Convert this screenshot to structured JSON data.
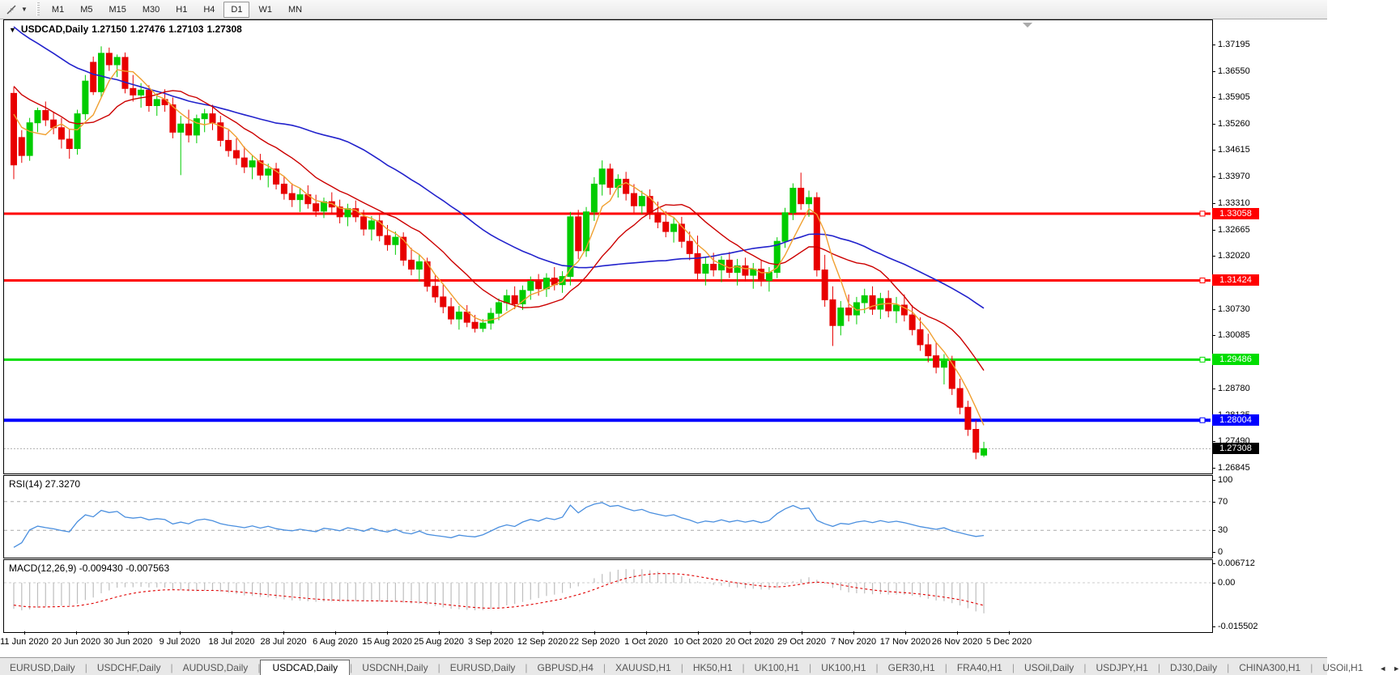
{
  "toolbar": {
    "chart_tool_icon": "cursor-tool-icon",
    "dropdown_icon": "chevron-down-icon",
    "timeframes": [
      {
        "label": "M1",
        "active": false
      },
      {
        "label": "M5",
        "active": false
      },
      {
        "label": "M15",
        "active": false
      },
      {
        "label": "M30",
        "active": false
      },
      {
        "label": "H1",
        "active": false
      },
      {
        "label": "H4",
        "active": false
      },
      {
        "label": "D1",
        "active": true
      },
      {
        "label": "W1",
        "active": false
      },
      {
        "label": "MN",
        "active": false
      }
    ]
  },
  "chart": {
    "title": {
      "dropdown_icon": "triangle-down-icon",
      "symbol": "USDCAD,Daily",
      "open": "1.27150",
      "high": "1.27476",
      "low": "1.27103",
      "close": "1.27308"
    },
    "price_axis_ticks": [
      {
        "label": "1.37195",
        "value": 1.37195
      },
      {
        "label": "1.36550",
        "value": 1.3655
      },
      {
        "label": "1.35905",
        "value": 1.35905
      },
      {
        "label": "1.35260",
        "value": 1.3526
      },
      {
        "label": "1.34615",
        "value": 1.34615
      },
      {
        "label": "1.33970",
        "value": 1.3397
      },
      {
        "label": "1.33310",
        "value": 1.3331
      },
      {
        "label": "1.32665",
        "value": 1.32665
      },
      {
        "label": "1.32020",
        "value": 1.3202
      },
      {
        "label": "1.30730",
        "value": 1.3073
      },
      {
        "label": "1.30085",
        "value": 1.30085
      },
      {
        "label": "1.28780",
        "value": 1.2878
      },
      {
        "label": "1.28135",
        "value": 1.28135
      },
      {
        "label": "1.27490",
        "value": 1.2749
      },
      {
        "label": "1.26845",
        "value": 1.26845
      }
    ],
    "levels": [
      {
        "label": "1.33058",
        "value": 1.33058,
        "color": "#FF0000",
        "width": 3
      },
      {
        "label": "1.31424",
        "value": 1.31424,
        "color": "#FF0000",
        "width": 3
      },
      {
        "label": "1.29486",
        "value": 1.29486,
        "color": "#00DD00",
        "width": 3
      },
      {
        "label": "1.28004",
        "value": 1.28004,
        "color": "#0000FF",
        "width": 4
      }
    ],
    "current_price": {
      "label": "1.27308",
      "value": 1.27308,
      "color": "#000000"
    },
    "shift_marker_icon": "triangle-down-icon",
    "colors": {
      "up_candle": "#00CC00",
      "down_candle": "#E80000",
      "ma_fast": "#F0A030",
      "ma_mid": "#CC0000",
      "ma_slow": "#2222CC",
      "rsi_line": "#4A8FDF",
      "macd_bars": "#BEBEBE",
      "macd_signal": "#E00000"
    }
  },
  "rsi_panel": {
    "label": "RSI(14) 27.3270",
    "ticks": [
      {
        "label": "100",
        "value": 100
      },
      {
        "label": "70",
        "value": 70
      },
      {
        "label": "30",
        "value": 30
      },
      {
        "label": "0",
        "value": 0
      }
    ],
    "levels": [
      70,
      30
    ]
  },
  "macd_panel": {
    "label": "MACD(12,26,9) -0.009430 -0.007563",
    "ticks": [
      {
        "label": "0.006712",
        "value": 0.006712
      },
      {
        "label": "0.00",
        "value": 0
      },
      {
        "label": "-0.015502",
        "value": -0.015502
      }
    ]
  },
  "tabs": {
    "items": [
      {
        "label": "EURUSD,Daily",
        "active": false
      },
      {
        "label": "USDCHF,Daily",
        "active": false
      },
      {
        "label": "AUDUSD,Daily",
        "active": false
      },
      {
        "label": "USDCAD,Daily",
        "active": true
      },
      {
        "label": "USDCNH,Daily",
        "active": false
      },
      {
        "label": "EURUSD,Daily",
        "active": false
      },
      {
        "label": "GBPUSD,H4",
        "active": false
      },
      {
        "label": "XAUUSD,H1",
        "active": false
      },
      {
        "label": "HK50,H1",
        "active": false
      },
      {
        "label": "UK100,H1",
        "active": false
      },
      {
        "label": "UK100,H1",
        "active": false
      },
      {
        "label": "GER30,H1",
        "active": false
      },
      {
        "label": "FRA40,H1",
        "active": false
      },
      {
        "label": "USOil,Daily",
        "active": false
      },
      {
        "label": "USDJPY,H1",
        "active": false
      },
      {
        "label": "DJ30,Daily",
        "active": false
      },
      {
        "label": "CHINA300,H1",
        "active": false
      },
      {
        "label": "USOil,H1",
        "active": false
      }
    ],
    "nav_left_icon": "◄",
    "nav_right_icon": "►"
  },
  "chart_data": {
    "type": "candlestick",
    "symbol": "USDCAD",
    "timeframe": "Daily",
    "title": "USDCAD,Daily 1.27150 1.27476 1.27103 1.27308",
    "ylim": [
      1.267,
      1.3779
    ],
    "x_axis_dates": [
      "11 Jun 2020",
      "20 Jun 2020",
      "30 Jun 2020",
      "9 Jul 2020",
      "18 Jul 2020",
      "28 Jul 2020",
      "6 Aug 2020",
      "15 Aug 2020",
      "25 Aug 2020",
      "3 Sep 2020",
      "12 Sep 2020",
      "22 Sep 2020",
      "1 Oct 2020",
      "10 Oct 2020",
      "20 Oct 2020",
      "29 Oct 2020",
      "7 Nov 2020",
      "17 Nov 2020",
      "26 Nov 2020",
      "5 Dec 2020"
    ],
    "horizontal_levels": [
      1.33058,
      1.31424,
      1.29486,
      1.28004
    ],
    "last_price": 1.27308,
    "moving_averages": [
      {
        "period": 5,
        "color": "#F0A030"
      },
      {
        "period": 13,
        "color": "#CC0000"
      },
      {
        "period": 34,
        "color": "#2222CC"
      }
    ],
    "indicators": [
      {
        "name": "RSI",
        "period": 14,
        "current": 27.327,
        "range": [
          0,
          100
        ],
        "levels": [
          70,
          30
        ]
      },
      {
        "name": "MACD",
        "params": [
          12,
          26,
          9
        ],
        "current_macd": -0.00943,
        "current_signal": -0.007563,
        "range": [
          -0.015502,
          0.006712
        ]
      }
    ],
    "ohlc": [
      [
        1.36,
        1.3615,
        1.339,
        1.3425
      ],
      [
        1.3492,
        1.351,
        1.343,
        1.3448
      ],
      [
        1.3448,
        1.354,
        1.3435,
        1.3528
      ],
      [
        1.3528,
        1.3565,
        1.3505,
        1.3558
      ],
      [
        1.3558,
        1.358,
        1.352,
        1.3535
      ],
      [
        1.3535,
        1.3555,
        1.35,
        1.3516
      ],
      [
        1.3516,
        1.354,
        1.3465,
        1.3488
      ],
      [
        1.3488,
        1.3512,
        1.344,
        1.3465
      ],
      [
        1.3465,
        1.356,
        1.345,
        1.355
      ],
      [
        1.355,
        1.3645,
        1.3535,
        1.363
      ],
      [
        1.3676,
        1.369,
        1.3596,
        1.3604
      ],
      [
        1.3604,
        1.3715,
        1.359,
        1.3698
      ],
      [
        1.3698,
        1.3712,
        1.3655,
        1.367
      ],
      [
        1.367,
        1.3695,
        1.364,
        1.3688
      ],
      [
        1.3688,
        1.37,
        1.36,
        1.3612
      ],
      [
        1.3612,
        1.3645,
        1.358,
        1.3596
      ],
      [
        1.3596,
        1.3625,
        1.3565,
        1.3608
      ],
      [
        1.3608,
        1.362,
        1.3555,
        1.357
      ],
      [
        1.357,
        1.36,
        1.3545,
        1.3585
      ],
      [
        1.3585,
        1.361,
        1.3555,
        1.3572
      ],
      [
        1.3572,
        1.359,
        1.349,
        1.3505
      ],
      [
        1.3505,
        1.3545,
        1.34,
        1.3525
      ],
      [
        1.3525,
        1.356,
        1.348,
        1.3498
      ],
      [
        1.3498,
        1.3548,
        1.3478,
        1.3538
      ],
      [
        1.3538,
        1.3562,
        1.3505,
        1.355
      ],
      [
        1.355,
        1.3572,
        1.351,
        1.3528
      ],
      [
        1.3528,
        1.3545,
        1.347,
        1.3485
      ],
      [
        1.3485,
        1.351,
        1.3445,
        1.346
      ],
      [
        1.346,
        1.349,
        1.3425,
        1.3442
      ],
      [
        1.3442,
        1.347,
        1.3405,
        1.342
      ],
      [
        1.342,
        1.3448,
        1.339,
        1.3435
      ],
      [
        1.3435,
        1.3452,
        1.3388,
        1.34
      ],
      [
        1.34,
        1.3428,
        1.337,
        1.3415
      ],
      [
        1.3415,
        1.343,
        1.3365,
        1.3378
      ],
      [
        1.3378,
        1.3398,
        1.334,
        1.3355
      ],
      [
        1.3355,
        1.338,
        1.3322,
        1.334
      ],
      [
        1.334,
        1.3368,
        1.331,
        1.3352
      ],
      [
        1.3352,
        1.3375,
        1.3318,
        1.333
      ],
      [
        1.333,
        1.3352,
        1.3298,
        1.3312
      ],
      [
        1.3312,
        1.3345,
        1.3295,
        1.3335
      ],
      [
        1.3335,
        1.3358,
        1.3306,
        1.3322
      ],
      [
        1.3322,
        1.334,
        1.3282,
        1.3298
      ],
      [
        1.3298,
        1.333,
        1.3275,
        1.3318
      ],
      [
        1.3318,
        1.3338,
        1.3285,
        1.3298
      ],
      [
        1.3298,
        1.3315,
        1.3252,
        1.3268
      ],
      [
        1.3268,
        1.33,
        1.324,
        1.3288
      ],
      [
        1.3288,
        1.3305,
        1.3238,
        1.3252
      ],
      [
        1.3252,
        1.3278,
        1.3215,
        1.323
      ],
      [
        1.323,
        1.3262,
        1.3205,
        1.3248
      ],
      [
        1.3248,
        1.326,
        1.3178,
        1.3192
      ],
      [
        1.3192,
        1.3222,
        1.3155,
        1.317
      ],
      [
        1.317,
        1.3205,
        1.314,
        1.3188
      ],
      [
        1.3188,
        1.3198,
        1.3115,
        1.3128
      ],
      [
        1.3128,
        1.3155,
        1.3088,
        1.3102
      ],
      [
        1.3102,
        1.3132,
        1.3062,
        1.3078
      ],
      [
        1.3078,
        1.31,
        1.3035,
        1.3048
      ],
      [
        1.3048,
        1.308,
        1.3022,
        1.3065
      ],
      [
        1.3065,
        1.3082,
        1.3028,
        1.304
      ],
      [
        1.304,
        1.3058,
        1.3015,
        1.3025
      ],
      [
        1.3025,
        1.3048,
        1.3016,
        1.3038
      ],
      [
        1.3038,
        1.3075,
        1.3022,
        1.3062
      ],
      [
        1.3062,
        1.3098,
        1.3045,
        1.3088
      ],
      [
        1.3088,
        1.312,
        1.3068,
        1.3105
      ],
      [
        1.3105,
        1.3128,
        1.3072,
        1.3085
      ],
      [
        1.3085,
        1.313,
        1.307,
        1.3118
      ],
      [
        1.3118,
        1.3152,
        1.3095,
        1.314
      ],
      [
        1.314,
        1.3158,
        1.3105,
        1.3122
      ],
      [
        1.3122,
        1.316,
        1.3102,
        1.3148
      ],
      [
        1.3148,
        1.3175,
        1.3118,
        1.3132
      ],
      [
        1.3132,
        1.3165,
        1.3112,
        1.3152
      ],
      [
        1.3152,
        1.331,
        1.313,
        1.3298
      ],
      [
        1.3298,
        1.3315,
        1.3195,
        1.3215
      ],
      [
        1.3215,
        1.3322,
        1.32,
        1.331
      ],
      [
        1.331,
        1.3395,
        1.3288,
        1.3378
      ],
      [
        1.3378,
        1.3436,
        1.335,
        1.3415
      ],
      [
        1.3415,
        1.3428,
        1.3352,
        1.337
      ],
      [
        1.337,
        1.3402,
        1.3345,
        1.339
      ],
      [
        1.339,
        1.3408,
        1.3338,
        1.3355
      ],
      [
        1.3355,
        1.3378,
        1.3308,
        1.3325
      ],
      [
        1.3325,
        1.3362,
        1.3305,
        1.3348
      ],
      [
        1.3348,
        1.3365,
        1.3292,
        1.3308
      ],
      [
        1.3308,
        1.3335,
        1.327,
        1.3285
      ],
      [
        1.3285,
        1.3312,
        1.3248,
        1.3262
      ],
      [
        1.3262,
        1.3295,
        1.3235,
        1.328
      ],
      [
        1.328,
        1.3298,
        1.3222,
        1.3238
      ],
      [
        1.3238,
        1.3262,
        1.3192,
        1.3208
      ],
      [
        1.3208,
        1.3252,
        1.3145,
        1.316
      ],
      [
        1.316,
        1.3198,
        1.313,
        1.3182
      ],
      [
        1.3182,
        1.321,
        1.3152,
        1.3168
      ],
      [
        1.3168,
        1.3202,
        1.3138,
        1.3192
      ],
      [
        1.3192,
        1.3212,
        1.3148,
        1.3162
      ],
      [
        1.3162,
        1.3195,
        1.313,
        1.3178
      ],
      [
        1.3178,
        1.3198,
        1.314,
        1.3155
      ],
      [
        1.3155,
        1.3185,
        1.3122,
        1.317
      ],
      [
        1.317,
        1.3192,
        1.3128,
        1.3142
      ],
      [
        1.3142,
        1.3175,
        1.3115,
        1.3162
      ],
      [
        1.3162,
        1.3248,
        1.3148,
        1.3238
      ],
      [
        1.3238,
        1.332,
        1.3222,
        1.3308
      ],
      [
        1.3308,
        1.338,
        1.329,
        1.3368
      ],
      [
        1.3368,
        1.3406,
        1.3315,
        1.333
      ],
      [
        1.333,
        1.3362,
        1.3298,
        1.3345
      ],
      [
        1.3345,
        1.3358,
        1.3152,
        1.3168
      ],
      [
        1.3168,
        1.3205,
        1.3078,
        1.3095
      ],
      [
        1.3095,
        1.3128,
        1.2982,
        1.3032
      ],
      [
        1.3032,
        1.3092,
        1.3008,
        1.3075
      ],
      [
        1.3075,
        1.3108,
        1.3042,
        1.3058
      ],
      [
        1.3058,
        1.3102,
        1.3035,
        1.3088
      ],
      [
        1.3088,
        1.3122,
        1.3062,
        1.3105
      ],
      [
        1.3105,
        1.3128,
        1.3058,
        1.3072
      ],
      [
        1.3072,
        1.3112,
        1.3048,
        1.3098
      ],
      [
        1.3098,
        1.3118,
        1.3052,
        1.3068
      ],
      [
        1.3068,
        1.3102,
        1.3038,
        1.3082
      ],
      [
        1.3082,
        1.3108,
        1.3042,
        1.3058
      ],
      [
        1.3058,
        1.3082,
        1.3008,
        1.3022
      ],
      [
        1.3022,
        1.3052,
        1.297,
        1.2985
      ],
      [
        1.2985,
        1.3012,
        1.2942,
        1.2958
      ],
      [
        1.2958,
        1.299,
        1.2915,
        1.293
      ],
      [
        1.293,
        1.2962,
        1.2888,
        1.2945
      ],
      [
        1.2945,
        1.2958,
        1.2862,
        1.2878
      ],
      [
        1.2878,
        1.2902,
        1.2815,
        1.2832
      ],
      [
        1.2832,
        1.2848,
        1.2762,
        1.2778
      ],
      [
        1.2778,
        1.28,
        1.2705,
        1.2722
      ],
      [
        1.2715,
        1.27476,
        1.27103,
        1.27308
      ]
    ]
  }
}
